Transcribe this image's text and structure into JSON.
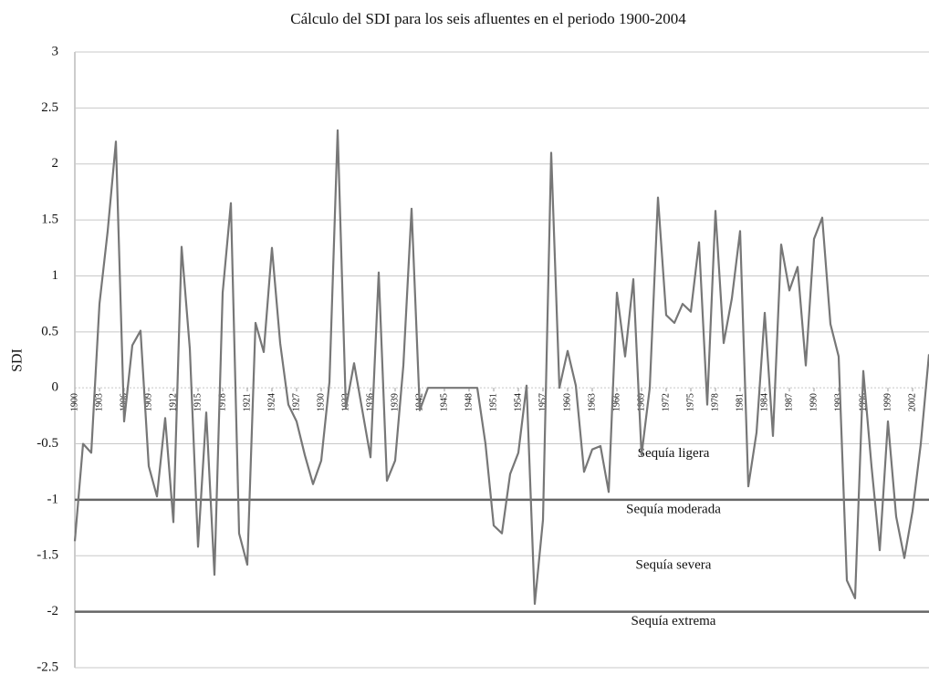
{
  "chart_data": {
    "type": "line",
    "title": "Cálculo del SDI para los seis afluentes en el periodo 1900-2004",
    "y_label": "SDI",
    "x": [
      1900,
      1901,
      1902,
      1903,
      1904,
      1905,
      1906,
      1907,
      1908,
      1909,
      1910,
      1911,
      1912,
      1913,
      1914,
      1915,
      1916,
      1917,
      1918,
      1919,
      1920,
      1921,
      1922,
      1923,
      1924,
      1925,
      1926,
      1927,
      1928,
      1929,
      1930,
      1931,
      1932,
      1933,
      1934,
      1935,
      1936,
      1937,
      1938,
      1939,
      1940,
      1941,
      1942,
      1943,
      1944,
      1945,
      1946,
      1947,
      1948,
      1949,
      1950,
      1951,
      1952,
      1953,
      1954,
      1955,
      1956,
      1957,
      1958,
      1959,
      1960,
      1961,
      1962,
      1963,
      1964,
      1965,
      1966,
      1967,
      1968,
      1969,
      1970,
      1971,
      1972,
      1973,
      1974,
      1975,
      1976,
      1977,
      1978,
      1979,
      1980,
      1981,
      1982,
      1983,
      1984,
      1985,
      1986,
      1987,
      1988,
      1989,
      1990,
      1991,
      1992,
      1993,
      1994,
      1995,
      1996,
      1997,
      1998,
      1999,
      2000,
      2001,
      2002,
      2003,
      2004
    ],
    "values": [
      -1.37,
      -0.5,
      -0.58,
      0.75,
      1.4,
      2.2,
      -0.3,
      0.38,
      0.51,
      -0.7,
      -0.97,
      -0.27,
      -1.2,
      1.26,
      0.35,
      -1.42,
      -0.22,
      -1.67,
      0.85,
      1.65,
      -1.3,
      -1.58,
      0.58,
      0.32,
      1.25,
      0.4,
      -0.15,
      -0.3,
      -0.6,
      -0.86,
      -0.65,
      0.05,
      2.3,
      -0.18,
      0.22,
      -0.2,
      -0.62,
      1.03,
      -0.83,
      -0.65,
      0.2,
      1.6,
      -0.2,
      0,
      0,
      0,
      0,
      0,
      0,
      0,
      -0.5,
      -1.23,
      -1.3,
      -0.77,
      -0.58,
      0.02,
      -1.93,
      -1.18,
      2.1,
      0,
      0.33,
      0.02,
      -0.75,
      -0.55,
      -0.52,
      -0.93,
      0.85,
      0.28,
      0.97,
      -0.6,
      0,
      1.7,
      0.65,
      0.58,
      0.75,
      0.68,
      1.3,
      -0.15,
      1.58,
      0.4,
      0.8,
      1.4,
      -0.88,
      -0.4,
      0.67,
      -0.43,
      1.28,
      0.87,
      1.08,
      0.2,
      1.33,
      1.52,
      0.57,
      0.28,
      -1.72,
      -1.88,
      0.15,
      -0.7,
      -1.45,
      -0.3,
      -1.15,
      -1.52,
      -1.1,
      -0.5,
      0.3
    ],
    "color": "#777777",
    "xlim": [
      1900,
      2004
    ],
    "xticks": [
      1900,
      1903,
      1906,
      1909,
      1912,
      1915,
      1918,
      1921,
      1924,
      1927,
      1930,
      1933,
      1936,
      1939,
      1942,
      1945,
      1948,
      1951,
      1954,
      1957,
      1960,
      1963,
      1966,
      1969,
      1972,
      1975,
      1978,
      1981,
      1984,
      1987,
      1990,
      1993,
      1996,
      1999,
      2002
    ],
    "ylim": [
      -2.5,
      3
    ],
    "yticks": [
      -2.5,
      -2,
      -1.5,
      -1,
      -0.5,
      0,
      0.5,
      1,
      1.5,
      2,
      2.5,
      3
    ],
    "grid": true,
    "drought_levels": [
      {
        "value": -0.5,
        "label": "Sequía ligera",
        "emphasized": false
      },
      {
        "value": -1,
        "label": "Sequía moderada",
        "emphasized": true
      },
      {
        "value": -1.5,
        "label": "Sequía severa",
        "emphasized": false
      },
      {
        "value": -2,
        "label": "Sequía extrema",
        "emphasized": true
      }
    ]
  }
}
